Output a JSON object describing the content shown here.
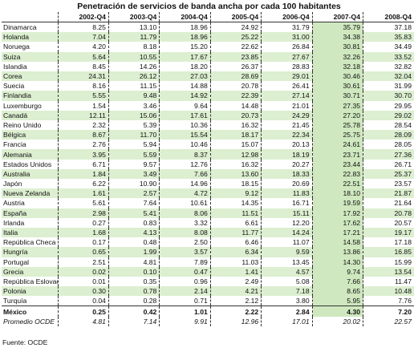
{
  "title": "Penetración de servicios de banda ancha por cada 100 habitantes",
  "table": {
    "columns": [
      "2002-Q4",
      "2003-Q4",
      "2004-Q4",
      "2005-Q4",
      "2006-Q4",
      "2007-Q4",
      "2008-Q4"
    ],
    "rows": [
      [
        "Dinamarca",
        "8.25",
        "13.10",
        "18.96",
        "24.92",
        "31.79",
        "35.79",
        "37.18"
      ],
      [
        "Holanda",
        "7.04",
        "11.79",
        "18.96",
        "25.22",
        "31.00",
        "34.38",
        "35.83"
      ],
      [
        "Noruega",
        "4.20",
        "8.18",
        "15.20",
        "22.62",
        "26.84",
        "30.81",
        "34.49"
      ],
      [
        "Suiza",
        "5.64",
        "10.55",
        "17.67",
        "23.85",
        "27.67",
        "32.26",
        "33.52"
      ],
      [
        "Islandia",
        "8.45",
        "14.26",
        "18.20",
        "26.37",
        "28.83",
        "32.18",
        "32.82"
      ],
      [
        "Corea",
        "24.31",
        "26.12",
        "27.03",
        "28.69",
        "29.01",
        "30.46",
        "32.04"
      ],
      [
        "Suecia",
        "8.16",
        "11.15",
        "14.88",
        "20.78",
        "26.41",
        "30.61",
        "31.99"
      ],
      [
        "Finlandia",
        "5.55",
        "9.48",
        "14.92",
        "22.39",
        "27.14",
        "30.71",
        "30.70"
      ],
      [
        "Luxemburgo",
        "1.54",
        "3.46",
        "9.64",
        "14.48",
        "21.01",
        "27.35",
        "29.95"
      ],
      [
        "Canadá",
        "12.11",
        "15.06",
        "17.61",
        "20.73",
        "24.29",
        "27.20",
        "29.02"
      ],
      [
        "Reino Unido",
        "2.32",
        "5.39",
        "10.36",
        "16.32",
        "21.45",
        "25.78",
        "28.54"
      ],
      [
        "Bélgica",
        "8.67",
        "11.70",
        "15.54",
        "18.17",
        "22.34",
        "25.75",
        "28.09"
      ],
      [
        "Francia",
        "2.76",
        "5.94",
        "10.46",
        "15.07",
        "20.13",
        "24.61",
        "28.05"
      ],
      [
        "Alemania",
        "3.95",
        "5.59",
        "8.37",
        "12.98",
        "18.19",
        "23.71",
        "27.36"
      ],
      [
        "Estados Unidos",
        "6.71",
        "9.57",
        "12.76",
        "16.32",
        "20.27",
        "23.44",
        "26.71"
      ],
      [
        "Australia",
        "1.84",
        "3.49",
        "7.66",
        "13.60",
        "18.33",
        "22.83",
        "25.37"
      ],
      [
        "Japón",
        "6.22",
        "10.90",
        "14.96",
        "18.15",
        "20.69",
        "22.51",
        "23.57"
      ],
      [
        "Nueva Zelanda",
        "1.61",
        "2.57",
        "4.72",
        "9.12",
        "11.83",
        "18.10",
        "21.87"
      ],
      [
        "Austria",
        "5.61",
        "7.64",
        "10.61",
        "14.35",
        "16.71",
        "19.59",
        "21.64"
      ],
      [
        "España",
        "2.98",
        "5.41",
        "8.06",
        "11.51",
        "15.11",
        "17.92",
        "20.78"
      ],
      [
        "Irlanda",
        "0.27",
        "0.83",
        "3.32",
        "6.61",
        "12.20",
        "17.62",
        "20.57"
      ],
      [
        "Italia",
        "1.68",
        "4.13",
        "8.08",
        "11.77",
        "14.24",
        "17.21",
        "19.17"
      ],
      [
        "República Checa",
        "0.17",
        "0.48",
        "2.50",
        "6.46",
        "11.07",
        "14.58",
        "17.18"
      ],
      [
        "Hungría",
        "0.65",
        "1.99",
        "3.57",
        "6.34",
        "9.59",
        "13.86",
        "16.85"
      ],
      [
        "Portugal",
        "2.51",
        "4.81",
        "7.89",
        "11.03",
        "13.45",
        "14.30",
        "15.99"
      ],
      [
        "Grecia",
        "0.02",
        "0.10",
        "0.47",
        "1.41",
        "4.57",
        "9.74",
        "13.54"
      ],
      [
        "República Eslovaca",
        "0.01",
        "0.35",
        "0.96",
        "2.49",
        "5.08",
        "7.66",
        "11.47"
      ],
      [
        "Polonia",
        "0.30",
        "0.78",
        "2.14",
        "4.21",
        "7.18",
        "8.65",
        "10.48"
      ],
      [
        "Turquía",
        "0.04",
        "0.28",
        "0.71",
        "2.12",
        "3.80",
        "5.95",
        "7.76"
      ],
      [
        "México",
        "0.25",
        "0.42",
        "1.01",
        "2.22",
        "2.84",
        "4.30",
        "7.20"
      ],
      [
        "Promedio OCDE",
        "4.81",
        "7.14",
        "9.91",
        "12.96",
        "17.01",
        "20.02",
        "22.57"
      ]
    ]
  },
  "source": "Fuente: OCDE"
}
